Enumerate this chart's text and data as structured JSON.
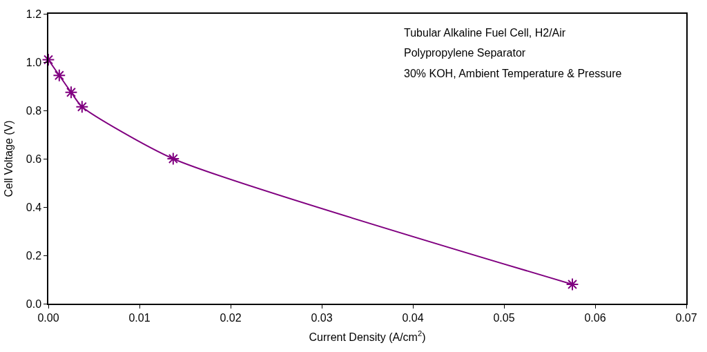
{
  "chart_data": {
    "type": "line",
    "xlabel": "Current Density (A/cm$^{2}$)",
    "ylabel": "Cell Voltage (V)",
    "annotations": [
      "Tubular Alkaline Fuel Cell, H2/Air",
      "Polypropylene Separator",
      "30% KOH, Ambient Temperature & Pressure"
    ],
    "x": [
      0,
      0.0012,
      0.0025,
      0.0037,
      0.0137,
      0.0575
    ],
    "series": [
      {
        "color": "#800080",
        "values": [
          1.01,
          0.945,
          0.875,
          0.815,
          0.6,
          0.08
        ]
      }
    ],
    "xlim": [
      0,
      0.07
    ],
    "ylim": [
      0,
      1.2
    ],
    "xticks": [
      {
        "value": 0,
        "label": "0.00"
      },
      {
        "value": 0.01,
        "label": "0.01"
      },
      {
        "value": 0.02,
        "label": "0.02"
      },
      {
        "value": 0.03,
        "label": "0.03"
      },
      {
        "value": 0.04,
        "label": "0.04"
      },
      {
        "value": 0.05,
        "label": "0.05"
      },
      {
        "value": 0.06,
        "label": "0.06"
      },
      {
        "value": 0.07,
        "label": "0.07"
      }
    ],
    "yticks": [
      {
        "value": 0,
        "label": "0.0"
      },
      {
        "value": 0.2,
        "label": "0.2"
      },
      {
        "value": 0.4,
        "label": "0.4"
      },
      {
        "value": 0.6,
        "label": "0.6"
      },
      {
        "value": 0.8,
        "label": "0.8"
      },
      {
        "value": 1,
        "label": "1.0"
      },
      {
        "value": 1.2,
        "label": "1.2"
      }
    ],
    "legend": false,
    "marker": "cross",
    "line_style": "solid"
  }
}
